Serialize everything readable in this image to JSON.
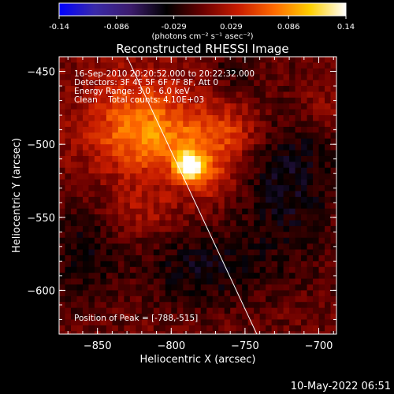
{
  "chart_data": {
    "type": "heatmap",
    "colorbar": {
      "min": -0.14,
      "max": 0.14,
      "tick_labels": [
        "-0.14",
        "-0.086",
        "-0.029",
        "0.029",
        "0.086",
        "0.14"
      ],
      "unit_label": "(photons cm⁻² s⁻¹ asec⁻²)",
      "colors": [
        "#0000ff",
        "#3a2aa8",
        "#3c1c6c",
        "#000000",
        "#6a0000",
        "#c81c00",
        "#ff6a00",
        "#ffd000",
        "#ffffff"
      ]
    },
    "title": "Reconstructed RHESSI Image",
    "annotations": [
      "16-Sep-2010 20:20:52.000 to 20:22:32.000",
      "Detectors: 3F 4F 5F 6F 7F 8F, Att 0",
      "Energy Range: 3.0 - 6.0 keV",
      "Clean    Total counts: 4.10E+03"
    ],
    "peak_label": "Position of Peak = [-788,-515]",
    "peak": {
      "x": -788,
      "y": -515,
      "value": 0.14
    },
    "xlabel": "Heliocentric X (arcsec)",
    "ylabel": "Heliocentric Y (arcsec)",
    "xlim": [
      -876,
      -688
    ],
    "ylim": [
      -630,
      -440
    ],
    "xticks": [
      -850,
      -800,
      -750,
      -700
    ],
    "xtick_labels": [
      "−850",
      "−800",
      "−750",
      "−700"
    ],
    "yticks": [
      -450,
      -500,
      -550,
      -600
    ],
    "ytick_labels": [
      "−450",
      "−500",
      "−550",
      "−600"
    ],
    "limb_line": [
      [
        -830,
        -440
      ],
      [
        -742,
        -630
      ]
    ],
    "emission_regions": [
      {
        "x": -822,
        "y": -478,
        "sx": 26,
        "sy": 22,
        "amp": 0.05
      },
      {
        "x": -808,
        "y": -500,
        "sx": 30,
        "sy": 16,
        "amp": 0.05
      },
      {
        "x": -776,
        "y": -520,
        "sx": 14,
        "sy": 14,
        "amp": 0.04
      },
      {
        "x": -760,
        "y": -490,
        "sx": 18,
        "sy": 14,
        "amp": 0.035
      },
      {
        "x": -820,
        "y": -545,
        "sx": 18,
        "sy": 14,
        "amp": 0.025
      },
      {
        "x": -700,
        "y": -475,
        "sx": 14,
        "sy": 12,
        "amp": 0.02
      }
    ],
    "negative_regions": [
      {
        "x": -720,
        "y": -525,
        "sx": 24,
        "sy": 40,
        "amp": 0.04
      },
      {
        "x": -780,
        "y": -585,
        "sx": 30,
        "sy": 20,
        "amp": 0.035
      },
      {
        "x": -860,
        "y": -575,
        "sx": 18,
        "sy": 26,
        "amp": 0.03
      },
      {
        "x": -758,
        "y": -450,
        "sx": 12,
        "sy": 10,
        "amp": 0.02
      }
    ],
    "grid": false,
    "legend": "none"
  },
  "footer": {
    "date": "10-May-2022 06:51"
  }
}
